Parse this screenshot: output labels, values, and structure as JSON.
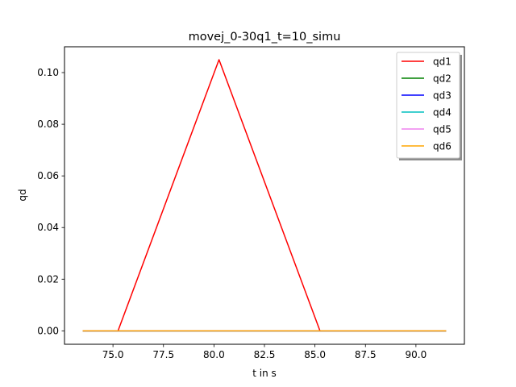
{
  "chart_data": {
    "type": "line",
    "title": "movej_0-30q1_t=10_simu",
    "xlabel": "t in s",
    "ylabel": "qd",
    "xlim": [
      72.6,
      92.4
    ],
    "ylim": [
      -0.0052,
      0.11
    ],
    "xticks": [
      75.0,
      77.5,
      80.0,
      82.5,
      85.0,
      87.5,
      90.0
    ],
    "xtick_labels": [
      "75.0",
      "77.5",
      "80.0",
      "82.5",
      "85.0",
      "87.5",
      "90.0"
    ],
    "yticks": [
      0.0,
      0.02,
      0.04,
      0.06,
      0.08,
      0.1
    ],
    "ytick_labels": [
      "0.00",
      "0.02",
      "0.04",
      "0.06",
      "0.08",
      "0.10"
    ],
    "grid": false,
    "legend_position": "top-right",
    "series": [
      {
        "name": "qd1",
        "color": "#ff0000",
        "x": [
          73.5,
          75.25,
          80.25,
          85.25,
          91.5
        ],
        "y": [
          0,
          0,
          0.105,
          0,
          0
        ]
      },
      {
        "name": "qd2",
        "color": "#008000",
        "x": [
          73.5,
          91.5
        ],
        "y": [
          0,
          0
        ]
      },
      {
        "name": "qd3",
        "color": "#0000ff",
        "x": [
          73.5,
          91.5
        ],
        "y": [
          0,
          0
        ]
      },
      {
        "name": "qd4",
        "color": "#00bfbf",
        "x": [
          73.5,
          91.5
        ],
        "y": [
          0,
          0
        ]
      },
      {
        "name": "qd5",
        "color": "#ee82ee",
        "x": [
          73.5,
          91.5
        ],
        "y": [
          0,
          0
        ]
      },
      {
        "name": "qd6",
        "color": "#ffa500",
        "x": [
          73.5,
          91.5
        ],
        "y": [
          0,
          0
        ]
      }
    ]
  }
}
